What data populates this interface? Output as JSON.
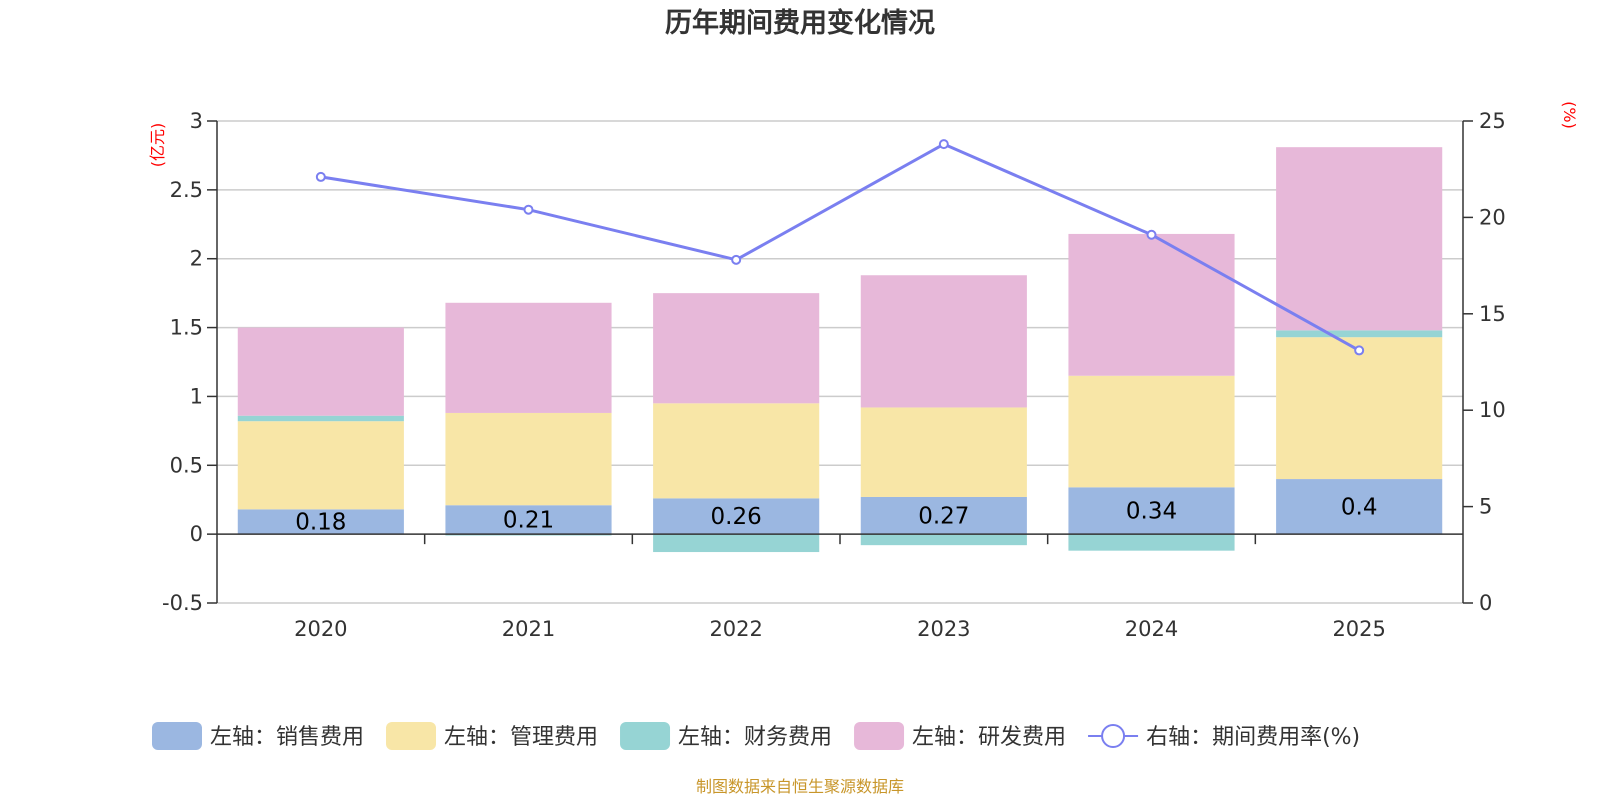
{
  "chart_data": {
    "type": "bar",
    "stacked": true,
    "title": "历年期间费用变化情况",
    "categories": [
      "2020",
      "2021",
      "2022",
      "2023",
      "2024",
      "2025"
    ],
    "left_axis": {
      "unit": "(亿元)",
      "ylim": [
        -0.5,
        3
      ],
      "ticks": [
        "3",
        "2.5",
        "2",
        "1.5",
        "1",
        "0.5",
        "0",
        "-0.5"
      ],
      "tick_values": [
        3,
        2.5,
        2,
        1.5,
        1,
        0.5,
        0,
        -0.5
      ]
    },
    "right_axis": {
      "unit": "(%)",
      "ylim": [
        0,
        25
      ],
      "ticks": [
        "25",
        "20",
        "15",
        "10",
        "5",
        "0"
      ],
      "tick_values": [
        25,
        20,
        15,
        10,
        5,
        0
      ]
    },
    "series": [
      {
        "name": "左轴：销售费用",
        "axis": "left",
        "kind": "bar",
        "color": "#9bb7e1",
        "values": [
          0.18,
          0.21,
          0.26,
          0.27,
          0.34,
          0.4
        ],
        "labels": [
          "0.18",
          "0.21",
          "0.26",
          "0.27",
          "0.34",
          "0.4"
        ]
      },
      {
        "name": "左轴：管理费用",
        "axis": "left",
        "kind": "bar",
        "color": "#f8e6a7",
        "values": [
          0.64,
          0.67,
          0.69,
          0.65,
          0.81,
          1.03
        ]
      },
      {
        "name": "左轴：财务费用",
        "axis": "left",
        "kind": "bar",
        "color": "#96d4d4",
        "values": [
          0.04,
          -0.01,
          -0.13,
          -0.08,
          -0.12,
          0.05
        ]
      },
      {
        "name": "左轴：研发费用",
        "axis": "left",
        "kind": "bar",
        "color": "#e7b8d9",
        "values": [
          0.64,
          0.8,
          0.8,
          0.96,
          1.03,
          1.33
        ]
      },
      {
        "name": "右轴：期间费用率(%)",
        "axis": "right",
        "kind": "line",
        "color": "#7a7ff0",
        "values": [
          22.1,
          20.4,
          17.8,
          23.8,
          19.1,
          13.1
        ]
      }
    ]
  },
  "source": "制图数据来自恒生聚源数据库"
}
